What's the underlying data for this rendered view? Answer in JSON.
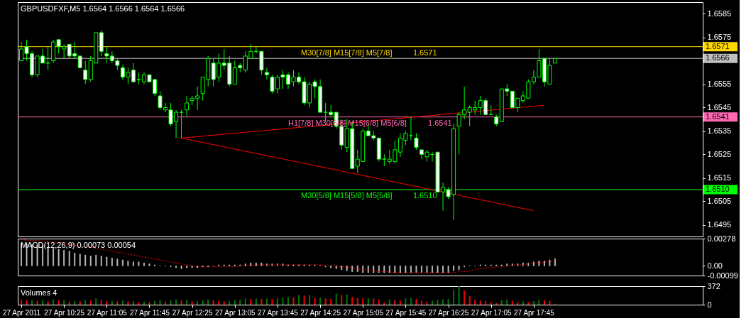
{
  "chart_data": [
    {
      "type": "candlestick",
      "title": "GBPUSDFXF,M5 1.6564 1.6566 1.6564 1.6566",
      "color": "#00ff00",
      "x": [
        "2011-04-27T09:45",
        "2011-04-27T09:50",
        "2011-04-27T09:55",
        "2011-04-27T10:00",
        "2011-04-27T10:05",
        "2011-04-27T10:10",
        "2011-04-27T10:15",
        "2011-04-27T10:20",
        "2011-04-27T10:25",
        "2011-04-27T10:30",
        "2011-04-27T10:35",
        "2011-04-27T10:40",
        "2011-04-27T10:45",
        "2011-04-27T10:50",
        "2011-04-27T10:55",
        "2011-04-27T11:00",
        "2011-04-27T11:05",
        "2011-04-27T11:10",
        "2011-04-27T11:15",
        "2011-04-27T11:20",
        "2011-04-27T11:25",
        "2011-04-27T11:30",
        "2011-04-27T11:35",
        "2011-04-27T11:40",
        "2011-04-27T11:45",
        "2011-04-27T11:50",
        "2011-04-27T11:55",
        "2011-04-27T12:00",
        "2011-04-27T12:05",
        "2011-04-27T12:10",
        "2011-04-27T12:15",
        "2011-04-27T12:20",
        "2011-04-27T12:25",
        "2011-04-27T12:30",
        "2011-04-27T12:35",
        "2011-04-27T12:40",
        "2011-04-27T12:45",
        "2011-04-27T12:50",
        "2011-04-27T12:55",
        "2011-04-27T13:00",
        "2011-04-27T13:05",
        "2011-04-27T13:10",
        "2011-04-27T13:15",
        "2011-04-27T13:20",
        "2011-04-27T13:25",
        "2011-04-27T13:30",
        "2011-04-27T13:35",
        "2011-04-27T13:40",
        "2011-04-27T13:45",
        "2011-04-27T13:50",
        "2011-04-27T13:55",
        "2011-04-27T14:00",
        "2011-04-27T14:05",
        "2011-04-27T14:10",
        "2011-04-27T14:15",
        "2011-04-27T14:20",
        "2011-04-27T14:25",
        "2011-04-27T14:30",
        "2011-04-27T14:35",
        "2011-04-27T14:40",
        "2011-04-27T14:45",
        "2011-04-27T14:50",
        "2011-04-27T14:55",
        "2011-04-27T15:00",
        "2011-04-27T15:05",
        "2011-04-27T15:10",
        "2011-04-27T15:15",
        "2011-04-27T15:20",
        "2011-04-27T15:25",
        "2011-04-27T15:30",
        "2011-04-27T15:35",
        "2011-04-27T15:40",
        "2011-04-27T15:45",
        "2011-04-27T15:50",
        "2011-04-27T15:55",
        "2011-04-27T16:00",
        "2011-04-27T16:05",
        "2011-04-27T16:10",
        "2011-04-27T16:15",
        "2011-04-27T16:20",
        "2011-04-27T16:25",
        "2011-04-27T16:30",
        "2011-04-27T16:35",
        "2011-04-27T16:40",
        "2011-04-27T16:45",
        "2011-04-27T16:50",
        "2011-04-27T16:55",
        "2011-04-27T17:00",
        "2011-04-27T17:05",
        "2011-04-27T17:10",
        "2011-04-27T17:15",
        "2011-04-27T17:20",
        "2011-04-27T17:25",
        "2011-04-27T17:30",
        "2011-04-27T17:35",
        "2011-04-27T17:40",
        "2011-04-27T17:45",
        "2011-04-27T17:50",
        "2011-04-27T17:55",
        "2011-04-27T18:00",
        "2011-04-27T18:05"
      ],
      "ohlc": [
        [
          1.6565,
          1.6573,
          1.6565,
          1.657
        ],
        [
          1.6571,
          1.6574,
          1.6565,
          1.6568
        ],
        [
          1.6568,
          1.6569,
          1.6558,
          1.6559
        ],
        [
          1.6559,
          1.6567,
          1.6558,
          1.6567
        ],
        [
          1.6567,
          1.657,
          1.6564,
          1.6564
        ],
        [
          1.6564,
          1.6571,
          1.6561,
          1.6564
        ],
        [
          1.6565,
          1.6574,
          1.6564,
          1.6573
        ],
        [
          1.6574,
          1.6574,
          1.6568,
          1.6571
        ],
        [
          1.657,
          1.6572,
          1.6566,
          1.6571
        ],
        [
          1.6572,
          1.6572,
          1.6566,
          1.6567
        ],
        [
          1.6568,
          1.6573,
          1.6566,
          1.6567
        ],
        [
          1.6567,
          1.6567,
          1.6562,
          1.6562
        ],
        [
          1.6561,
          1.6565,
          1.6555,
          1.6557
        ],
        [
          1.6557,
          1.6567,
          1.6556,
          1.6565
        ],
        [
          1.6564,
          1.6577,
          1.6564,
          1.6577
        ],
        [
          1.6577,
          1.6578,
          1.6567,
          1.6569
        ],
        [
          1.6568,
          1.6571,
          1.6564,
          1.6567
        ],
        [
          1.6567,
          1.6569,
          1.6564,
          1.6565
        ],
        [
          1.6565,
          1.6566,
          1.6561,
          1.6563
        ],
        [
          1.6562,
          1.6563,
          1.6557,
          1.6558
        ],
        [
          1.6558,
          1.6562,
          1.6555,
          1.656
        ],
        [
          1.6561,
          1.6564,
          1.6556,
          1.6556
        ],
        [
          1.6557,
          1.656,
          1.6555,
          1.6557
        ],
        [
          1.6556,
          1.656,
          1.6555,
          1.6559
        ],
        [
          1.6559,
          1.6559,
          1.6556,
          1.6556
        ],
        [
          1.6557,
          1.6557,
          1.655,
          1.6551
        ],
        [
          1.655,
          1.6552,
          1.6544,
          1.6545
        ],
        [
          1.6544,
          1.6547,
          1.6543,
          1.6545
        ],
        [
          1.6544,
          1.6547,
          1.6537,
          1.6538
        ],
        [
          1.6539,
          1.6544,
          1.6532,
          1.6543
        ],
        [
          1.6543,
          1.6544,
          1.6532,
          1.6543
        ],
        [
          1.6544,
          1.655,
          1.6541,
          1.6547
        ],
        [
          1.6548,
          1.655,
          1.6546,
          1.6549
        ],
        [
          1.6549,
          1.6554,
          1.6544,
          1.655
        ],
        [
          1.6551,
          1.6558,
          1.6548,
          1.6558
        ],
        [
          1.6557,
          1.6567,
          1.6554,
          1.6566
        ],
        [
          1.6564,
          1.6566,
          1.6554,
          1.6557
        ],
        [
          1.6558,
          1.6568,
          1.6556,
          1.6564
        ],
        [
          1.6564,
          1.657,
          1.6561,
          1.6563
        ],
        [
          1.6564,
          1.6567,
          1.6554,
          1.6555
        ],
        [
          1.6555,
          1.6565,
          1.6555,
          1.6562
        ],
        [
          1.6563,
          1.6564,
          1.656,
          1.6562
        ],
        [
          1.6561,
          1.6569,
          1.656,
          1.6567
        ],
        [
          1.6566,
          1.6572,
          1.6566,
          1.6569
        ],
        [
          1.6569,
          1.6571,
          1.6568,
          1.6569
        ],
        [
          1.6569,
          1.6569,
          1.6559,
          1.6561
        ],
        [
          1.656,
          1.6562,
          1.6557,
          1.6559
        ],
        [
          1.6558,
          1.6559,
          1.6551,
          1.6552
        ],
        [
          1.6553,
          1.6559,
          1.6551,
          1.6558
        ],
        [
          1.6559,
          1.6561,
          1.6553,
          1.6558
        ],
        [
          1.6559,
          1.656,
          1.6553,
          1.6555
        ],
        [
          1.6556,
          1.6561,
          1.6554,
          1.6558
        ],
        [
          1.6558,
          1.656,
          1.6555,
          1.6556
        ],
        [
          1.6556,
          1.6558,
          1.6546,
          1.6547
        ],
        [
          1.6547,
          1.6556,
          1.6545,
          1.6555
        ],
        [
          1.6556,
          1.6557,
          1.6549,
          1.6554
        ],
        [
          1.6554,
          1.6557,
          1.6543,
          1.6543
        ],
        [
          1.6543,
          1.6547,
          1.6539,
          1.6543
        ],
        [
          1.6543,
          1.6546,
          1.6541,
          1.6542
        ],
        [
          1.6543,
          1.6543,
          1.6536,
          1.6537
        ],
        [
          1.6537,
          1.654,
          1.6527,
          1.6529
        ],
        [
          1.6528,
          1.654,
          1.6526,
          1.6536
        ],
        [
          1.6536,
          1.6539,
          1.6519,
          1.6519
        ],
        [
          1.652,
          1.6527,
          1.6517,
          1.6523
        ],
        [
          1.6522,
          1.6536,
          1.6522,
          1.6535
        ],
        [
          1.6535,
          1.6538,
          1.6533,
          1.6533
        ],
        [
          1.6533,
          1.6535,
          1.6531,
          1.6532
        ],
        [
          1.6532,
          1.6532,
          1.6522,
          1.6523
        ],
        [
          1.6523,
          1.6525,
          1.652,
          1.6523
        ],
        [
          1.6522,
          1.6527,
          1.6521,
          1.6523
        ],
        [
          1.6522,
          1.6531,
          1.6521,
          1.6527
        ],
        [
          1.6526,
          1.6534,
          1.6524,
          1.6532
        ],
        [
          1.6531,
          1.6535,
          1.6529,
          1.6534
        ],
        [
          1.6533,
          1.6541,
          1.6531,
          1.6533
        ],
        [
          1.6532,
          1.6534,
          1.6527,
          1.6528
        ],
        [
          1.6527,
          1.6527,
          1.6523,
          1.6525
        ],
        [
          1.6524,
          1.6527,
          1.6522,
          1.6526
        ],
        [
          1.6525,
          1.6526,
          1.6522,
          1.6525
        ],
        [
          1.6526,
          1.6526,
          1.6509,
          1.6509
        ],
        [
          1.6509,
          1.6513,
          1.6501,
          1.6511
        ],
        [
          1.651,
          1.6511,
          1.6506,
          1.6507
        ],
        [
          1.6508,
          1.6538,
          1.6497,
          1.6536
        ],
        [
          1.6537,
          1.6543,
          1.6525,
          1.6542
        ],
        [
          1.6542,
          1.6554,
          1.654,
          1.6544
        ],
        [
          1.6543,
          1.6546,
          1.6537,
          1.6545
        ],
        [
          1.6544,
          1.6548,
          1.6542,
          1.6545
        ],
        [
          1.6545,
          1.655,
          1.6542,
          1.6548
        ],
        [
          1.6548,
          1.6549,
          1.6542,
          1.6542
        ],
        [
          1.6542,
          1.6546,
          1.6542,
          1.6542
        ],
        [
          1.6541,
          1.6542,
          1.6537,
          1.6538
        ],
        [
          1.6539,
          1.6553,
          1.6539,
          1.6553
        ],
        [
          1.6553,
          1.6555,
          1.655,
          1.6552
        ],
        [
          1.6552,
          1.6552,
          1.6545,
          1.6545
        ],
        [
          1.6545,
          1.6549,
          1.6543,
          1.6549
        ],
        [
          1.6548,
          1.6552,
          1.6547,
          1.655
        ],
        [
          1.6549,
          1.6557,
          1.6549,
          1.6556
        ],
        [
          1.6556,
          1.6561,
          1.6555,
          1.6558
        ],
        [
          1.6558,
          1.657,
          1.6558,
          1.6565
        ],
        [
          1.6566,
          1.6566,
          1.6554,
          1.6556
        ],
        [
          1.6555,
          1.6566,
          1.6555,
          1.6563
        ],
        [
          1.6564,
          1.6566,
          1.6564,
          1.6566
        ]
      ],
      "colors": [
        "#000000",
        "#ffffff",
        "#ffffff",
        "#000000",
        "#ffffff",
        "#00ff00",
        "#000000",
        "#ffffff",
        "#000000",
        "#ffffff",
        "#ffffff",
        "#ffffff",
        "#ffffff",
        "#000000",
        "#000000",
        "#ffffff",
        "#ffffff",
        "#ffffff",
        "#ffffff",
        "#ffffff",
        "#000000",
        "#ffffff",
        "#00ff00",
        "#000000",
        "#ffffff",
        "#ffffff",
        "#ffffff",
        "#000000",
        "#ffffff",
        "#000000",
        "#00ff00",
        "#000000",
        "#000000",
        "#000000",
        "#000000",
        "#000000",
        "#ffffff",
        "#000000",
        "#ffffff",
        "#ffffff",
        "#000000",
        "#ffffff",
        "#000000",
        "#000000",
        "#00ff00",
        "#ffffff",
        "#ffffff",
        "#ffffff",
        "#000000",
        "#ffffff",
        "#ffffff",
        "#000000",
        "#ffffff",
        "#ffffff",
        "#000000",
        "#ffffff",
        "#ffffff",
        "#00ff00",
        "#ffffff",
        "#ffffff",
        "#ffffff",
        "#000000",
        "#ffffff",
        "#000000",
        "#000000",
        "#ffffff",
        "#ffffff",
        "#ffffff",
        "#00ff00",
        "#000000",
        "#000000",
        "#000000",
        "#000000",
        "#00ff00",
        "#ffffff",
        "#ffffff",
        "#000000",
        "#00ff00",
        "#ffffff",
        "#000000",
        "#ffffff",
        "#000000",
        "#000000",
        "#000000",
        "#000000",
        "#000000",
        "#000000",
        "#ffffff",
        "#00ff00",
        "#ffffff",
        "#000000",
        "#ffffff",
        "#ffffff",
        "#000000",
        "#000000",
        "#000000",
        "#000000",
        "#000000",
        "#ffffff",
        "#000000",
        "#000000"
      ],
      "xlim": [
        "2011-04-27T09:45",
        "2011-04-27T20:20"
      ],
      "ylim": [
        1.649,
        1.659
      ],
      "yticks": [
        1.6585,
        1.6575,
        1.6555,
        1.6545,
        1.6535,
        1.6525,
        1.6515,
        1.6505,
        1.6495
      ],
      "tick_labels": "y",
      "ref_lines": [
        {
          "axis": "y",
          "value": 1.6571,
          "label": "1.6571",
          "color": "#ffd700"
        },
        {
          "axis": "y",
          "value": 1.6566,
          "label": "1.6566",
          "color": "#c0c0c0"
        },
        {
          "axis": "y",
          "value": 1.6541,
          "label": "1.6541",
          "color": "#ff69b4"
        },
        {
          "axis": "y",
          "value": 1.651,
          "label": "1.6510",
          "color": "#00ff00"
        }
      ],
      "annotations": [
        {
          "text": "M30[7/8] M15[7/8] M5[7/8]",
          "x": "2011-04-27T14:07",
          "y": 1.6571
        },
        {
          "text": "1.6571",
          "x": "2011-04-27T15:52",
          "y": 1.6571
        },
        {
          "text": "H1[7/8] M30[6/8] M15[6/8] M5[6/8]",
          "x": "2011-04-27T13:55",
          "y": 1.6541
        },
        {
          "text": "1.6541",
          "x": "2011-04-27T16:06",
          "y": 1.6541
        },
        {
          "text": "M30[5/8] M15[5/8] M5[5/8]",
          "x": "2011-04-27T14:07",
          "y": 1.651
        },
        {
          "text": "1.6510",
          "x": "2011-04-27T15:52",
          "y": 1.651
        }
      ],
      "series": [
        {
          "type": "line",
          "color": "#ff0000",
          "x": [
            "2011-04-27T12:15",
            "2011-04-27T17:55"
          ],
          "values": [
            1.6532,
            1.6546
          ]
        },
        {
          "type": "line",
          "color": "#ff0000",
          "x": [
            "2011-04-27T12:15",
            "2011-04-27T17:45"
          ],
          "values": [
            1.6532,
            1.6501
          ]
        }
      ]
    },
    {
      "type": "bar",
      "title": "MACD(12,26,9) 0.00073 0.00054",
      "x": [
        "2011-04-27T09:45",
        "2011-04-27T09:50",
        "2011-04-27T09:55",
        "2011-04-27T10:00",
        "2011-04-27T10:05",
        "2011-04-27T10:10",
        "2011-04-27T10:15",
        "2011-04-27T10:20",
        "2011-04-27T10:25",
        "2011-04-27T10:30",
        "2011-04-27T10:35",
        "2011-04-27T10:40",
        "2011-04-27T10:45",
        "2011-04-27T10:50",
        "2011-04-27T10:55",
        "2011-04-27T11:00",
        "2011-04-27T11:05",
        "2011-04-27T11:10",
        "2011-04-27T11:15",
        "2011-04-27T11:20",
        "2011-04-27T11:25",
        "2011-04-27T11:30",
        "2011-04-27T11:35",
        "2011-04-27T11:40",
        "2011-04-27T11:45",
        "2011-04-27T11:50",
        "2011-04-27T11:55",
        "2011-04-27T12:00",
        "2011-04-27T12:05",
        "2011-04-27T12:10",
        "2011-04-27T12:15",
        "2011-04-27T12:20",
        "2011-04-27T12:25",
        "2011-04-27T12:30",
        "2011-04-27T12:35",
        "2011-04-27T12:40",
        "2011-04-27T12:45",
        "2011-04-27T12:50",
        "2011-04-27T12:55",
        "2011-04-27T13:00",
        "2011-04-27T13:05",
        "2011-04-27T13:10",
        "2011-04-27T13:15",
        "2011-04-27T13:20",
        "2011-04-27T13:25",
        "2011-04-27T13:30",
        "2011-04-27T13:35",
        "2011-04-27T13:40",
        "2011-04-27T13:45",
        "2011-04-27T13:50",
        "2011-04-27T13:55",
        "2011-04-27T14:00",
        "2011-04-27T14:05",
        "2011-04-27T14:10",
        "2011-04-27T14:15",
        "2011-04-27T14:20",
        "2011-04-27T14:25",
        "2011-04-27T14:30",
        "2011-04-27T14:35",
        "2011-04-27T14:40",
        "2011-04-27T14:45",
        "2011-04-27T14:50",
        "2011-04-27T14:55",
        "2011-04-27T15:00",
        "2011-04-27T15:05",
        "2011-04-27T15:10",
        "2011-04-27T15:15",
        "2011-04-27T15:20",
        "2011-04-27T15:25",
        "2011-04-27T15:30",
        "2011-04-27T15:35",
        "2011-04-27T15:40",
        "2011-04-27T15:45",
        "2011-04-27T15:50",
        "2011-04-27T15:55",
        "2011-04-27T16:00",
        "2011-04-27T16:05",
        "2011-04-27T16:10",
        "2011-04-27T16:15",
        "2011-04-27T16:20",
        "2011-04-27T16:25",
        "2011-04-27T16:30",
        "2011-04-27T16:35",
        "2011-04-27T16:40",
        "2011-04-27T16:45",
        "2011-04-27T16:50",
        "2011-04-27T16:55",
        "2011-04-27T17:00",
        "2011-04-27T17:05",
        "2011-04-27T17:10",
        "2011-04-27T17:15",
        "2011-04-27T17:20",
        "2011-04-27T17:25",
        "2011-04-27T17:30",
        "2011-04-27T17:35",
        "2011-04-27T17:40",
        "2011-04-27T17:45",
        "2011-04-27T17:50",
        "2011-04-27T17:55",
        "2011-04-27T18:00",
        "2011-04-27T18:05"
      ],
      "xlim": [
        "2011-04-27T09:45",
        "2011-04-27T20:20"
      ],
      "ylim": [
        -0.00099,
        0.00278
      ],
      "yticks": [
        0.00278,
        {
          "value": 0,
          "label": "0.00"
        },
        -0.00099
      ],
      "tick_labels": "y",
      "series": [
        {
          "type": "bar",
          "color": "#c0c0c0",
          "values": [
            0.0023,
            0.0023,
            0.0022,
            0.0022,
            0.0021,
            0.0019,
            0.0018,
            0.0017,
            0.0016,
            0.0015,
            0.0013,
            0.0012,
            0.0011,
            0.001,
            0.0011,
            0.001,
            0.0009,
            0.0008,
            0.0007,
            0.0006,
            0.0005,
            0.0004,
            0.0004,
            0.0003,
            0.0002,
            0.0001,
            0,
            0,
            -0.0001,
            -0.0002,
            -0.0003,
            -0.0002,
            -0.0002,
            -0.0002,
            -0.0001,
            -0.0001,
            0,
            0.0001,
            0.0001,
            0.0001,
            0.0001,
            0.0001,
            0.0002,
            0.0003,
            0.0003,
            0.0003,
            0.0002,
            0.0002,
            0.0002,
            0.0002,
            0.0001,
            0.0001,
            0.0001,
            0.0001,
            0.0001,
            0.0001,
            0,
            -0.0001,
            -0.0002,
            -0.0003,
            -0.0004,
            -0.0005,
            -0.0006,
            -0.0006,
            -0.0007,
            -0.0007,
            -0.0007,
            -0.0007,
            -0.0007,
            -0.0007,
            -0.0007,
            -0.0007,
            -0.0007,
            -0.0007,
            -0.0007,
            -0.0007,
            -0.0007,
            -0.0007,
            -0.0007,
            -0.0007,
            -0.0007,
            -0.0005,
            -0.0004,
            -0.0001,
            0,
            0,
            0.0001,
            0.0001,
            0.0001,
            0.0001,
            0.0001,
            0.0002,
            0.0002,
            0.0002,
            0.0003,
            0.0003,
            0.0004,
            0.0005,
            0.0005,
            0.0006,
            0.00073
          ]
        },
        {
          "type": "line",
          "color": "#ff0000",
          "line_style": "dotted",
          "values": [
            0.0027,
            0.0026,
            0.0026,
            0.0026,
            0.0025,
            0.0025,
            0.0024,
            0.0024,
            0.0023,
            0.0022,
            0.0021,
            0.002,
            0.002,
            0.0019,
            0.0018,
            0.0017,
            0.0016,
            0.0015,
            0.0014,
            0.0013,
            0.0012,
            0.0011,
            0.001,
            0.0009,
            0.0008,
            0.0007,
            0.0006,
            0.0005,
            0.0004,
            0.0003,
            0.0002,
            0.0001,
            0,
            -0.0001,
            -0.0001,
            -0.0001,
            -0.0001,
            -0.0001,
            -0.0001,
            -0.0001,
            -0.0001,
            0,
            0,
            0,
            0.0001,
            0.0001,
            0.0001,
            0.0001,
            0.0001,
            0.0001,
            0.0001,
            0.0001,
            0.0001,
            0.0001,
            0.0001,
            0.0001,
            0.0001,
            0,
            0,
            0,
            -0.0001,
            -0.0001,
            -0.0002,
            -0.0003,
            -0.0004,
            -0.0004,
            -0.0005,
            -0.0006,
            -0.0006,
            -0.0006,
            -0.0007,
            -0.0007,
            -0.0007,
            -0.0007,
            -0.0007,
            -0.0007,
            -0.0007,
            -0.0007,
            -0.0007,
            -0.0007,
            -0.0007,
            -0.0007,
            -0.0006,
            -0.0006,
            -0.0005,
            -0.0004,
            -0.0003,
            -0.0002,
            -0.0002,
            -0.0001,
            -0.0001,
            0,
            0.0001,
            0.0001,
            0.0001,
            0.0002,
            0.0003,
            0.0003,
            0.0004,
            0.0004,
            0.00054
          ]
        }
      ]
    },
    {
      "type": "bar",
      "title": "Volumes 4",
      "x": [
        "2011-04-27T09:45",
        "2011-04-27T09:50",
        "2011-04-27T09:55",
        "2011-04-27T10:00",
        "2011-04-27T10:05",
        "2011-04-27T10:10",
        "2011-04-27T10:15",
        "2011-04-27T10:20",
        "2011-04-27T10:25",
        "2011-04-27T10:30",
        "2011-04-27T10:35",
        "2011-04-27T10:40",
        "2011-04-27T10:45",
        "2011-04-27T10:50",
        "2011-04-27T10:55",
        "2011-04-27T11:00",
        "2011-04-27T11:05",
        "2011-04-27T11:10",
        "2011-04-27T11:15",
        "2011-04-27T11:20",
        "2011-04-27T11:25",
        "2011-04-27T11:30",
        "2011-04-27T11:35",
        "2011-04-27T11:40",
        "2011-04-27T11:45",
        "2011-04-27T11:50",
        "2011-04-27T11:55",
        "2011-04-27T12:00",
        "2011-04-27T12:05",
        "2011-04-27T12:10",
        "2011-04-27T12:15",
        "2011-04-27T12:20",
        "2011-04-27T12:25",
        "2011-04-27T12:30",
        "2011-04-27T12:35",
        "2011-04-27T12:40",
        "2011-04-27T12:45",
        "2011-04-27T12:50",
        "2011-04-27T12:55",
        "2011-04-27T13:00",
        "2011-04-27T13:05",
        "2011-04-27T13:10",
        "2011-04-27T13:15",
        "2011-04-27T13:20",
        "2011-04-27T13:25",
        "2011-04-27T13:30",
        "2011-04-27T13:35",
        "2011-04-27T13:40",
        "2011-04-27T13:45",
        "2011-04-27T13:50",
        "2011-04-27T13:55",
        "2011-04-27T14:00",
        "2011-04-27T14:05",
        "2011-04-27T14:10",
        "2011-04-27T14:15",
        "2011-04-27T14:20",
        "2011-04-27T14:25",
        "2011-04-27T14:30",
        "2011-04-27T14:35",
        "2011-04-27T14:40",
        "2011-04-27T14:45",
        "2011-04-27T14:50",
        "2011-04-27T14:55",
        "2011-04-27T15:00",
        "2011-04-27T15:05",
        "2011-04-27T15:10",
        "2011-04-27T15:15",
        "2011-04-27T15:20",
        "2011-04-27T15:25",
        "2011-04-27T15:30",
        "2011-04-27T15:35",
        "2011-04-27T15:40",
        "2011-04-27T15:45",
        "2011-04-27T15:50",
        "2011-04-27T15:55",
        "2011-04-27T16:00",
        "2011-04-27T16:05",
        "2011-04-27T16:10",
        "2011-04-27T16:15",
        "2011-04-27T16:20",
        "2011-04-27T16:25",
        "2011-04-27T16:30",
        "2011-04-27T16:35",
        "2011-04-27T16:40",
        "2011-04-27T16:45",
        "2011-04-27T16:50",
        "2011-04-27T16:55",
        "2011-04-27T17:00",
        "2011-04-27T17:05",
        "2011-04-27T17:10",
        "2011-04-27T17:15",
        "2011-04-27T17:20",
        "2011-04-27T17:25",
        "2011-04-27T17:30",
        "2011-04-27T17:35",
        "2011-04-27T17:40",
        "2011-04-27T17:45",
        "2011-04-27T17:50",
        "2011-04-27T17:55",
        "2011-04-27T18:00",
        "2011-04-27T18:05"
      ],
      "xlim": [
        "2011-04-27T09:45",
        "2011-04-27T20:20"
      ],
      "xticks": [
        {
          "value": "2011-04-27T09:45",
          "label": "27 Apr 2011"
        },
        {
          "value": "2011-04-27T10:25",
          "label": "27 Apr 10:25"
        },
        {
          "value": "2011-04-27T11:05",
          "label": "27 Apr 11:05"
        },
        {
          "value": "2011-04-27T11:45",
          "label": "27 Apr 11:45"
        },
        {
          "value": "2011-04-27T12:25",
          "label": "27 Apr 12:25"
        },
        {
          "value": "2011-04-27T13:05",
          "label": "27 Apr 13:05"
        },
        {
          "value": "2011-04-27T13:45",
          "label": "27 Apr 13:45"
        },
        {
          "value": "2011-04-27T14:25",
          "label": "27 Apr 14:25"
        },
        {
          "value": "2011-04-27T15:05",
          "label": "27 Apr 15:05"
        },
        {
          "value": "2011-04-27T15:45",
          "label": "27 Apr 15:45"
        },
        {
          "value": "2011-04-27T16:25",
          "label": "27 Apr 16:25"
        },
        {
          "value": "2011-04-27T17:05",
          "label": "27 Apr 17:05"
        },
        {
          "value": "2011-04-27T17:45",
          "label": "27 Apr 17:45"
        }
      ],
      "ylim": [
        0,
        372
      ],
      "yticks": [
        372,
        0
      ],
      "values": [
        100,
        80,
        90,
        70,
        90,
        60,
        100,
        80,
        90,
        60,
        70,
        60,
        90,
        80,
        120,
        100,
        60,
        70,
        60,
        80,
        60,
        70,
        50,
        60,
        50,
        70,
        90,
        60,
        80,
        100,
        80,
        90,
        60,
        70,
        80,
        100,
        90,
        70,
        60,
        70,
        90,
        100,
        120,
        110,
        120,
        110,
        120,
        110,
        130,
        140,
        150,
        140,
        190,
        180,
        190,
        130,
        140,
        120,
        110,
        220,
        190,
        200,
        150,
        130,
        120,
        130,
        120,
        100,
        40,
        100,
        90,
        80,
        120,
        130,
        110,
        80,
        60,
        70,
        90,
        100,
        110,
        290,
        372,
        280,
        170,
        100,
        80,
        70,
        50,
        30,
        90,
        100,
        70,
        50,
        60,
        50,
        70,
        100,
        90,
        70,
        4
      ],
      "colors": [
        "#ff0000",
        "#ff0000",
        "#008000",
        "#ff0000",
        "#008000",
        "#ff0000",
        "#008000",
        "#ff0000",
        "#008000",
        "#ff0000",
        "#008000",
        "#ff0000",
        "#008000",
        "#ff0000",
        "#008000",
        "#ff0000",
        "#ff0000",
        "#008000",
        "#ff0000",
        "#008000",
        "#ff0000",
        "#008000",
        "#ff0000",
        "#008000",
        "#ff0000",
        "#008000",
        "#008000",
        "#ff0000",
        "#008000",
        "#008000",
        "#ff0000",
        "#008000",
        "#ff0000",
        "#008000",
        "#008000",
        "#008000",
        "#ff0000",
        "#ff0000",
        "#ff0000",
        "#008000",
        "#008000",
        "#008000",
        "#008000",
        "#ff0000",
        "#008000",
        "#ff0000",
        "#008000",
        "#ff0000",
        "#008000",
        "#008000",
        "#008000",
        "#ff0000",
        "#008000",
        "#ff0000",
        "#008000",
        "#ff0000",
        "#008000",
        "#ff0000",
        "#ff0000",
        "#008000",
        "#ff0000",
        "#008000",
        "#ff0000",
        "#ff0000",
        "#ff0000",
        "#008000",
        "#ff0000",
        "#ff0000",
        "#ff0000",
        "#008000",
        "#ff0000",
        "#ff0000",
        "#008000",
        "#008000",
        "#ff0000",
        "#ff0000",
        "#ff0000",
        "#008000",
        "#008000",
        "#008000",
        "#008000",
        "#008000",
        "#008000",
        "#ff0000",
        "#ff0000",
        "#ff0000",
        "#ff0000",
        "#ff0000",
        "#ff0000",
        "#ff0000",
        "#008000",
        "#008000",
        "#ff0000",
        "#ff0000",
        "#008000",
        "#ff0000",
        "#008000",
        "#008000",
        "#ff0000",
        "#ff0000",
        "#ff0000"
      ]
    }
  ]
}
